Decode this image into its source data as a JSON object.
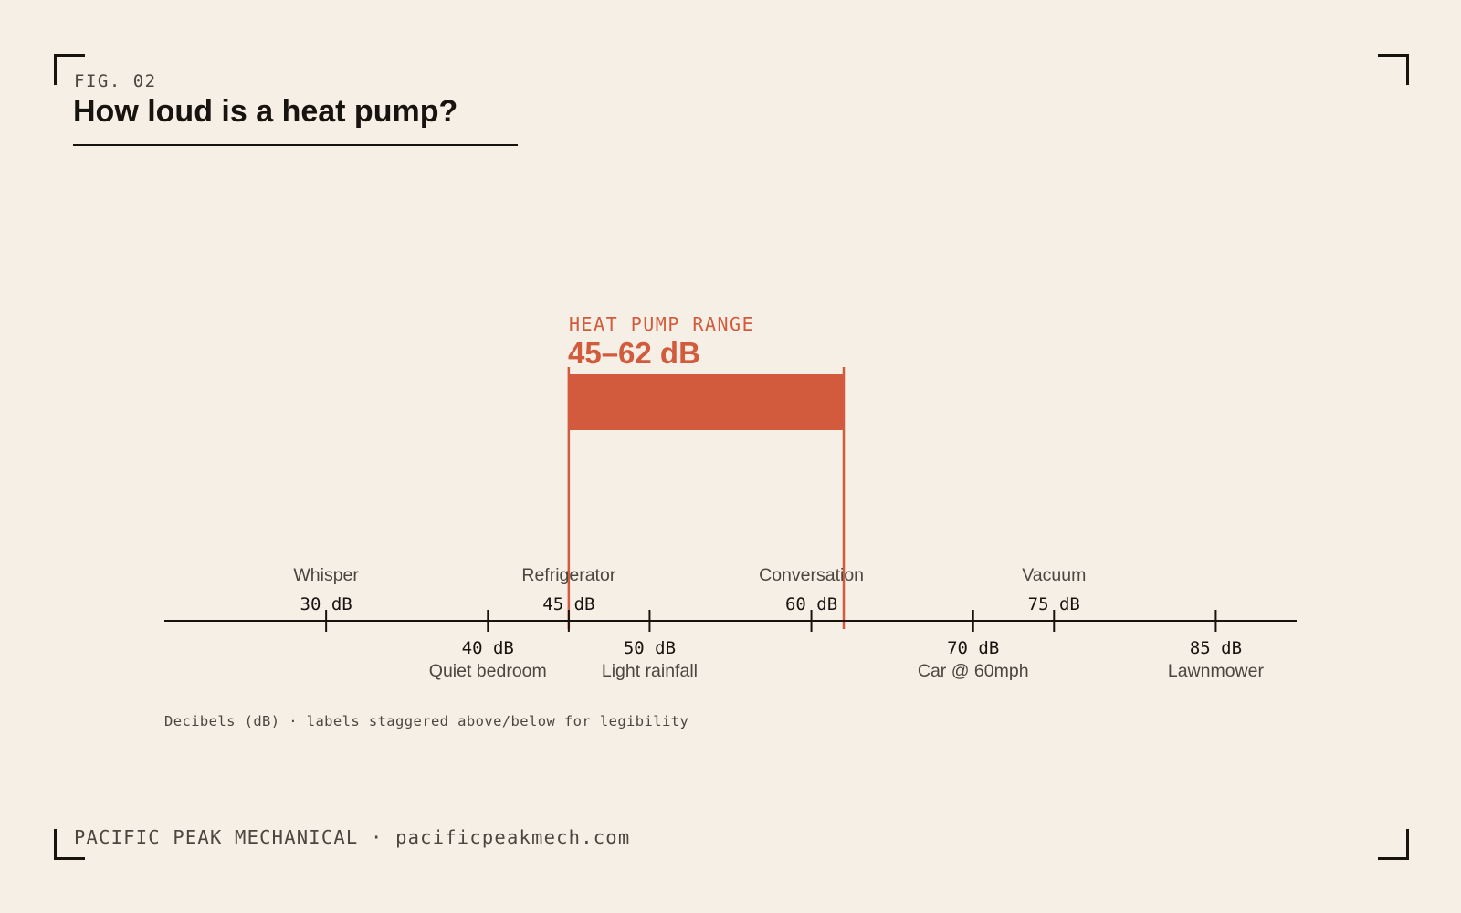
{
  "colors": {
    "background": "#f5efe5",
    "ink": "#17130f",
    "muted": "#4b4640",
    "accent": "#d35b3d"
  },
  "header": {
    "fig_label": "FIG. 02",
    "title": "How loud is a heat pump?"
  },
  "highlight": {
    "label": "HEAT PUMP RANGE",
    "value_text": "45–62 dB"
  },
  "chart_data": {
    "type": "range-scale",
    "unit": "dB",
    "domain": [
      20,
      90
    ],
    "highlight_range": [
      45,
      62
    ],
    "markers": [
      {
        "value": 30,
        "value_label": "30 dB",
        "name": "Whisper",
        "side": "above"
      },
      {
        "value": 40,
        "value_label": "40 dB",
        "name": "Quiet bedroom",
        "side": "below"
      },
      {
        "value": 45,
        "value_label": "45 dB",
        "name": "Refrigerator",
        "side": "above"
      },
      {
        "value": 50,
        "value_label": "50 dB",
        "name": "Light rainfall",
        "side": "below"
      },
      {
        "value": 60,
        "value_label": "60 dB",
        "name": "Conversation",
        "side": "above"
      },
      {
        "value": 70,
        "value_label": "70 dB",
        "name": "Car @ 60mph",
        "side": "below"
      },
      {
        "value": 75,
        "value_label": "75 dB",
        "name": "Vacuum",
        "side": "above"
      },
      {
        "value": 85,
        "value_label": "85 dB",
        "name": "Lawnmower",
        "side": "below"
      }
    ]
  },
  "footnote": "Decibels (dB) · labels staggered above/below for legibility",
  "footer": "PACIFIC PEAK MECHANICAL · pacificpeakmech.com"
}
